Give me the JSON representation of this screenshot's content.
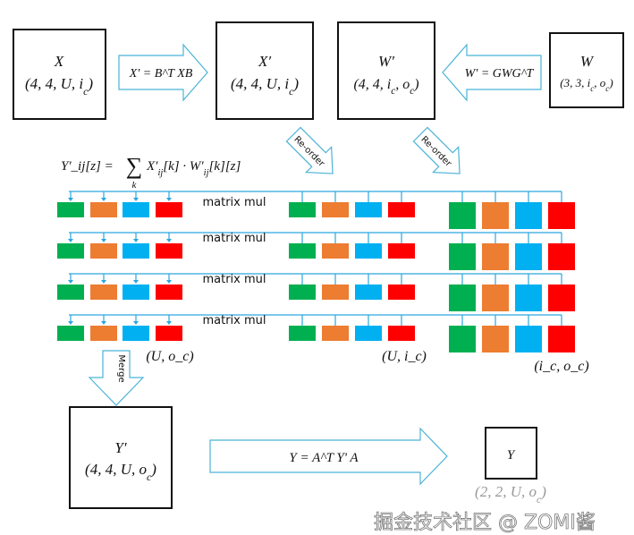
{
  "boxes": {
    "x": {
      "name": "X",
      "shape": "(4, 4, U, i_c)"
    },
    "x_prime": {
      "name": "X'",
      "shape": "(4, 4, U, i_c)"
    },
    "w_prime": {
      "name": "W'",
      "shape": "(4, 4, i_c, o_c)"
    },
    "w": {
      "name": "W",
      "shape": "(3, 3, i_c, o_c)"
    },
    "y_prime": {
      "name": "Y'",
      "shape": "(4, 4, U, o_c)"
    },
    "y": {
      "name": "Y",
      "shape": "(2, 2, U, o_c)"
    }
  },
  "arrows": {
    "input_transform": "X' = B^T XB",
    "weight_transform": "W' = GWG^T",
    "reorder_left": "Re-order",
    "reorder_right": "Re-order",
    "merge": "Merge",
    "output_transform": "Y = A^T Y' A"
  },
  "formula": {
    "lhs": "Y'_ij[z] = ",
    "sum": "∑",
    "index": "k",
    "rhs": "X'_ij[k] · W'_ij[k][z]"
  },
  "rows": [
    {
      "label": "matrix mul"
    },
    {
      "label": "matrix mul"
    },
    {
      "label": "matrix mul"
    },
    {
      "label": "matrix mul"
    }
  ],
  "group_labels": {
    "output": "(U, o_c)",
    "input": "(U, i_c)",
    "weight": "(i_c, o_c)"
  },
  "colors": [
    "#00b050",
    "#ed7d31",
    "#00b0f0",
    "#ff0000"
  ],
  "arrow_color": "#4bb3d6",
  "watermark": "掘金技术社区 @ ZOMI酱"
}
